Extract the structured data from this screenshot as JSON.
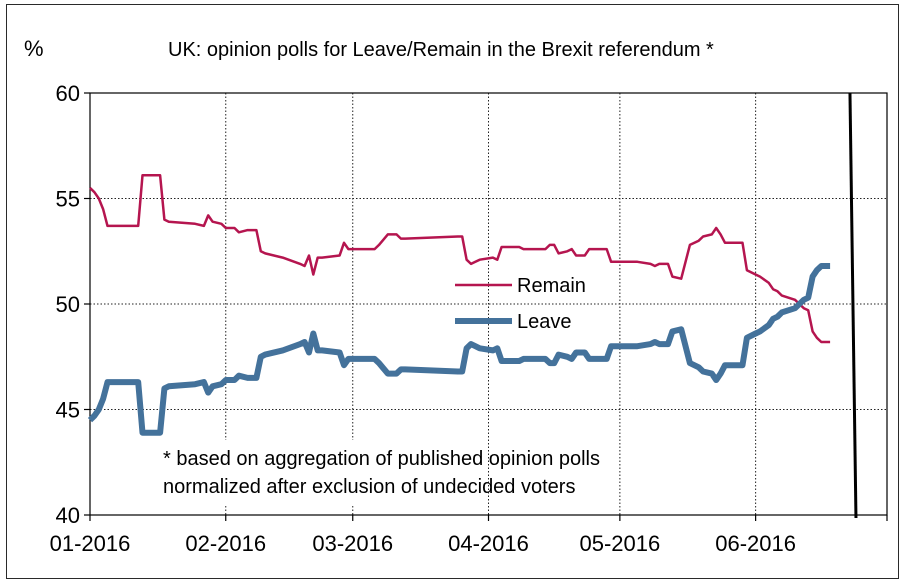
{
  "chart_data": {
    "type": "line",
    "title": "UK: opinion polls for Leave/Remain in the Brexit referendum  *",
    "unit_label": "%",
    "xlabel": "",
    "ylabel": "%",
    "ylim": [
      40,
      60
    ],
    "yticks": [
      40,
      45,
      50,
      55,
      60
    ],
    "xlim": [
      "2016-01-01",
      "2016-07-01"
    ],
    "xticks": [
      {
        "date": "2016-01-01",
        "label": "01-2016"
      },
      {
        "date": "2016-02-01",
        "label": "02-2016"
      },
      {
        "date": "2016-03-01",
        "label": "03-2016"
      },
      {
        "date": "2016-04-01",
        "label": "04-2016"
      },
      {
        "date": "2016-05-01",
        "label": "05-2016"
      },
      {
        "date": "2016-06-01",
        "label": "06-2016"
      }
    ],
    "grid": true,
    "legend_position": "center",
    "vertical_marker": {
      "date": "2016-06-23"
    },
    "annotation": [
      "* based on aggregation of published opinion polls",
      "normalized after exclusion of undecided voters"
    ],
    "series": [
      {
        "name": "Remain",
        "color": "#b5154f",
        "points": [
          [
            "2016-01-01",
            55.5
          ],
          [
            "2016-01-02",
            55.3
          ],
          [
            "2016-01-03",
            55.0
          ],
          [
            "2016-01-04",
            54.5
          ],
          [
            "2016-01-05",
            53.7
          ],
          [
            "2016-01-12",
            53.7
          ],
          [
            "2016-01-13",
            56.1
          ],
          [
            "2016-01-17",
            56.1
          ],
          [
            "2016-01-18",
            54.0
          ],
          [
            "2016-01-19",
            53.9
          ],
          [
            "2016-01-25",
            53.8
          ],
          [
            "2016-01-27",
            53.7
          ],
          [
            "2016-01-28",
            54.2
          ],
          [
            "2016-01-29",
            53.9
          ],
          [
            "2016-01-31",
            53.8
          ],
          [
            "2016-02-01",
            53.6
          ],
          [
            "2016-02-03",
            53.6
          ],
          [
            "2016-02-04",
            53.4
          ],
          [
            "2016-02-06",
            53.5
          ],
          [
            "2016-02-08",
            53.5
          ],
          [
            "2016-02-09",
            52.5
          ],
          [
            "2016-02-10",
            52.4
          ],
          [
            "2016-02-14",
            52.2
          ],
          [
            "2016-02-18",
            51.9
          ],
          [
            "2016-02-19",
            51.8
          ],
          [
            "2016-02-20",
            52.3
          ],
          [
            "2016-02-21",
            51.4
          ],
          [
            "2016-02-22",
            52.2
          ],
          [
            "2016-02-23",
            52.2
          ],
          [
            "2016-02-27",
            52.3
          ],
          [
            "2016-02-28",
            52.9
          ],
          [
            "2016-02-29",
            52.6
          ],
          [
            "2016-03-06",
            52.6
          ],
          [
            "2016-03-07",
            52.8
          ],
          [
            "2016-03-09",
            53.3
          ],
          [
            "2016-03-11",
            53.3
          ],
          [
            "2016-03-12",
            53.1
          ],
          [
            "2016-03-13",
            53.1
          ],
          [
            "2016-03-25",
            53.2
          ],
          [
            "2016-03-26",
            53.2
          ],
          [
            "2016-03-27",
            52.1
          ],
          [
            "2016-03-28",
            51.9
          ],
          [
            "2016-03-29",
            52.0
          ],
          [
            "2016-03-30",
            52.1
          ],
          [
            "2016-04-02",
            52.2
          ],
          [
            "2016-04-03",
            52.1
          ],
          [
            "2016-04-04",
            52.7
          ],
          [
            "2016-04-08",
            52.7
          ],
          [
            "2016-04-09",
            52.6
          ],
          [
            "2016-04-14",
            52.6
          ],
          [
            "2016-04-15",
            52.8
          ],
          [
            "2016-04-16",
            52.8
          ],
          [
            "2016-04-17",
            52.4
          ],
          [
            "2016-04-19",
            52.5
          ],
          [
            "2016-04-20",
            52.6
          ],
          [
            "2016-04-21",
            52.3
          ],
          [
            "2016-04-23",
            52.3
          ],
          [
            "2016-04-24",
            52.6
          ],
          [
            "2016-04-28",
            52.6
          ],
          [
            "2016-04-29",
            52.0
          ],
          [
            "2016-05-05",
            52.0
          ],
          [
            "2016-05-08",
            51.9
          ],
          [
            "2016-05-09",
            51.8
          ],
          [
            "2016-05-10",
            51.9
          ],
          [
            "2016-05-12",
            51.9
          ],
          [
            "2016-05-13",
            51.3
          ],
          [
            "2016-05-15",
            51.2
          ],
          [
            "2016-05-17",
            52.8
          ],
          [
            "2016-05-19",
            53.0
          ],
          [
            "2016-05-20",
            53.2
          ],
          [
            "2016-05-22",
            53.3
          ],
          [
            "2016-05-23",
            53.6
          ],
          [
            "2016-05-24",
            53.3
          ],
          [
            "2016-05-25",
            52.9
          ],
          [
            "2016-05-29",
            52.9
          ],
          [
            "2016-05-30",
            51.6
          ],
          [
            "2016-06-01",
            51.4
          ],
          [
            "2016-06-02",
            51.3
          ],
          [
            "2016-06-04",
            51.0
          ],
          [
            "2016-06-05",
            50.7
          ],
          [
            "2016-06-06",
            50.6
          ],
          [
            "2016-06-07",
            50.4
          ],
          [
            "2016-06-10",
            50.2
          ],
          [
            "2016-06-11",
            50.0
          ],
          [
            "2016-06-12",
            49.8
          ],
          [
            "2016-06-13",
            49.7
          ],
          [
            "2016-06-14",
            48.7
          ],
          [
            "2016-06-15",
            48.4
          ],
          [
            "2016-06-16",
            48.2
          ],
          [
            "2016-06-18",
            48.2
          ]
        ]
      },
      {
        "name": "Leave",
        "color": "#44729b",
        "points": [
          [
            "2016-01-01",
            44.5
          ],
          [
            "2016-01-02",
            44.7
          ],
          [
            "2016-01-03",
            45.0
          ],
          [
            "2016-01-04",
            45.5
          ],
          [
            "2016-01-05",
            46.3
          ],
          [
            "2016-01-12",
            46.3
          ],
          [
            "2016-01-13",
            43.9
          ],
          [
            "2016-01-17",
            43.9
          ],
          [
            "2016-01-18",
            46.0
          ],
          [
            "2016-01-19",
            46.1
          ],
          [
            "2016-01-25",
            46.2
          ],
          [
            "2016-01-27",
            46.3
          ],
          [
            "2016-01-28",
            45.8
          ],
          [
            "2016-01-29",
            46.1
          ],
          [
            "2016-01-31",
            46.2
          ],
          [
            "2016-02-01",
            46.4
          ],
          [
            "2016-02-03",
            46.4
          ],
          [
            "2016-02-04",
            46.6
          ],
          [
            "2016-02-06",
            46.5
          ],
          [
            "2016-02-08",
            46.5
          ],
          [
            "2016-02-09",
            47.5
          ],
          [
            "2016-02-10",
            47.6
          ],
          [
            "2016-02-14",
            47.8
          ],
          [
            "2016-02-18",
            48.1
          ],
          [
            "2016-02-19",
            48.2
          ],
          [
            "2016-02-20",
            47.7
          ],
          [
            "2016-02-21",
            48.6
          ],
          [
            "2016-02-22",
            47.8
          ],
          [
            "2016-02-23",
            47.8
          ],
          [
            "2016-02-27",
            47.7
          ],
          [
            "2016-02-28",
            47.1
          ],
          [
            "2016-02-29",
            47.4
          ],
          [
            "2016-03-06",
            47.4
          ],
          [
            "2016-03-07",
            47.2
          ],
          [
            "2016-03-09",
            46.7
          ],
          [
            "2016-03-11",
            46.7
          ],
          [
            "2016-03-12",
            46.9
          ],
          [
            "2016-03-13",
            46.9
          ],
          [
            "2016-03-25",
            46.8
          ],
          [
            "2016-03-26",
            46.8
          ],
          [
            "2016-03-27",
            47.9
          ],
          [
            "2016-03-28",
            48.1
          ],
          [
            "2016-03-29",
            48.0
          ],
          [
            "2016-03-30",
            47.9
          ],
          [
            "2016-04-02",
            47.8
          ],
          [
            "2016-04-03",
            47.9
          ],
          [
            "2016-04-04",
            47.3
          ],
          [
            "2016-04-08",
            47.3
          ],
          [
            "2016-04-09",
            47.4
          ],
          [
            "2016-04-14",
            47.4
          ],
          [
            "2016-04-15",
            47.2
          ],
          [
            "2016-04-16",
            47.2
          ],
          [
            "2016-04-17",
            47.6
          ],
          [
            "2016-04-19",
            47.5
          ],
          [
            "2016-04-20",
            47.4
          ],
          [
            "2016-04-21",
            47.7
          ],
          [
            "2016-04-23",
            47.7
          ],
          [
            "2016-04-24",
            47.4
          ],
          [
            "2016-04-28",
            47.4
          ],
          [
            "2016-04-29",
            48.0
          ],
          [
            "2016-05-05",
            48.0
          ],
          [
            "2016-05-08",
            48.1
          ],
          [
            "2016-05-09",
            48.2
          ],
          [
            "2016-05-10",
            48.1
          ],
          [
            "2016-05-12",
            48.1
          ],
          [
            "2016-05-13",
            48.7
          ],
          [
            "2016-05-15",
            48.8
          ],
          [
            "2016-05-17",
            47.2
          ],
          [
            "2016-05-19",
            47.0
          ],
          [
            "2016-05-20",
            46.8
          ],
          [
            "2016-05-22",
            46.7
          ],
          [
            "2016-05-23",
            46.4
          ],
          [
            "2016-05-24",
            46.7
          ],
          [
            "2016-05-25",
            47.1
          ],
          [
            "2016-05-29",
            47.1
          ],
          [
            "2016-05-30",
            48.4
          ],
          [
            "2016-06-01",
            48.6
          ],
          [
            "2016-06-02",
            48.7
          ],
          [
            "2016-06-04",
            49.0
          ],
          [
            "2016-06-05",
            49.3
          ],
          [
            "2016-06-06",
            49.4
          ],
          [
            "2016-06-07",
            49.6
          ],
          [
            "2016-06-10",
            49.8
          ],
          [
            "2016-06-11",
            50.0
          ],
          [
            "2016-06-12",
            50.2
          ],
          [
            "2016-06-13",
            50.3
          ],
          [
            "2016-06-14",
            51.3
          ],
          [
            "2016-06-15",
            51.6
          ],
          [
            "2016-06-16",
            51.8
          ],
          [
            "2016-06-18",
            51.8
          ]
        ]
      }
    ]
  }
}
